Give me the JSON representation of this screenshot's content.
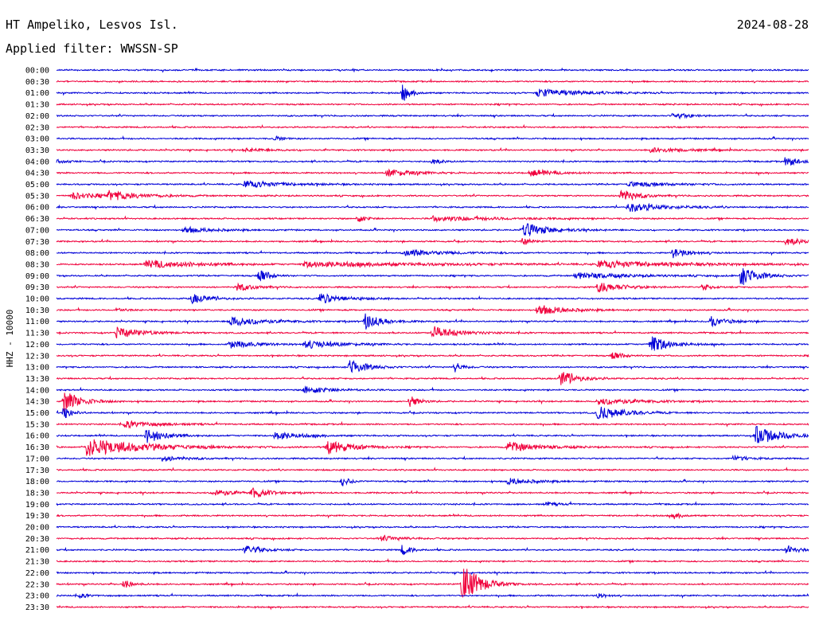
{
  "header": {
    "station": "HT Ampeliko, Lesvos Isl.",
    "date": "2024-08-28",
    "filter": "Applied filter: WWSSN-SP"
  },
  "chart_data": {
    "type": "line",
    "ylabel": "HHZ - 10000",
    "colors": [
      "#0000d8",
      "#f0003c"
    ],
    "rows": [
      {
        "t": "00:00",
        "events": []
      },
      {
        "t": "00:30",
        "events": []
      },
      {
        "t": "01:00",
        "events": [
          {
            "at": 0.46,
            "amp": 10,
            "dur": 0.01
          },
          {
            "at": 0.64,
            "amp": 5,
            "dur": 0.05
          }
        ]
      },
      {
        "t": "01:30",
        "events": []
      },
      {
        "t": "02:00",
        "events": [
          {
            "at": 0.82,
            "amp": 4,
            "dur": 0.02
          }
        ]
      },
      {
        "t": "02:30",
        "events": []
      },
      {
        "t": "03:00",
        "events": [
          {
            "at": 0.29,
            "amp": 3,
            "dur": 0.01
          }
        ]
      },
      {
        "t": "03:30",
        "events": [
          {
            "at": 0.25,
            "amp": 2,
            "dur": 0.03
          },
          {
            "at": 0.79,
            "amp": 3,
            "dur": 0.04
          }
        ]
      },
      {
        "t": "04:00",
        "events": [
          {
            "at": 0.0,
            "amp": 4,
            "dur": 0.01
          },
          {
            "at": 0.5,
            "amp": 4,
            "dur": 0.01
          },
          {
            "at": 0.97,
            "amp": 6,
            "dur": 0.02
          }
        ]
      },
      {
        "t": "04:30",
        "events": [
          {
            "at": 0.44,
            "amp": 5,
            "dur": 0.03
          },
          {
            "at": 0.63,
            "amp": 4,
            "dur": 0.03
          }
        ]
      },
      {
        "t": "05:00",
        "events": [
          {
            "at": 0.25,
            "amp": 4,
            "dur": 0.05
          },
          {
            "at": 0.76,
            "amp": 3,
            "dur": 0.05
          }
        ]
      },
      {
        "t": "05:30",
        "events": [
          {
            "at": 0.02,
            "amp": 4,
            "dur": 0.04
          },
          {
            "at": 0.07,
            "amp": 5,
            "dur": 0.04
          },
          {
            "at": 0.75,
            "amp": 8,
            "dur": 0.02
          }
        ]
      },
      {
        "t": "06:00",
        "events": [
          {
            "at": 0.76,
            "amp": 6,
            "dur": 0.04
          }
        ]
      },
      {
        "t": "06:30",
        "events": [
          {
            "at": 0.4,
            "amp": 5,
            "dur": 0.01
          },
          {
            "at": 0.5,
            "amp": 3,
            "dur": 0.08
          }
        ]
      },
      {
        "t": "07:00",
        "events": [
          {
            "at": 0.62,
            "amp": 9,
            "dur": 0.03
          },
          {
            "at": 0.17,
            "amp": 4,
            "dur": 0.03
          }
        ]
      },
      {
        "t": "07:30",
        "events": [
          {
            "at": 0.62,
            "amp": 5,
            "dur": 0.01
          },
          {
            "at": 0.97,
            "amp": 5,
            "dur": 0.02
          }
        ]
      },
      {
        "t": "08:00",
        "events": [
          {
            "at": 0.46,
            "amp": 4,
            "dur": 0.05
          },
          {
            "at": 0.82,
            "amp": 6,
            "dur": 0.02
          }
        ]
      },
      {
        "t": "08:30",
        "events": [
          {
            "at": 0.12,
            "amp": 5,
            "dur": 0.06
          },
          {
            "at": 0.33,
            "amp": 3,
            "dur": 0.15
          },
          {
            "at": 0.72,
            "amp": 4,
            "dur": 0.1
          }
        ]
      },
      {
        "t": "09:00",
        "events": [
          {
            "at": 0.27,
            "amp": 12,
            "dur": 0.01
          },
          {
            "at": 0.91,
            "amp": 13,
            "dur": 0.02
          },
          {
            "at": 0.69,
            "amp": 4,
            "dur": 0.06
          }
        ]
      },
      {
        "t": "09:30",
        "events": [
          {
            "at": 0.24,
            "amp": 5,
            "dur": 0.02
          },
          {
            "at": 0.72,
            "amp": 7,
            "dur": 0.03
          },
          {
            "at": 0.86,
            "amp": 4,
            "dur": 0.01
          }
        ]
      },
      {
        "t": "10:00",
        "events": [
          {
            "at": 0.18,
            "amp": 6,
            "dur": 0.02
          },
          {
            "at": 0.35,
            "amp": 6,
            "dur": 0.03
          }
        ]
      },
      {
        "t": "10:30",
        "events": [
          {
            "at": 0.64,
            "amp": 7,
            "dur": 0.03
          },
          {
            "at": 0.08,
            "amp": 3,
            "dur": 0.01
          }
        ]
      },
      {
        "t": "11:00",
        "events": [
          {
            "at": 0.41,
            "amp": 10,
            "dur": 0.02
          },
          {
            "at": 0.23,
            "amp": 6,
            "dur": 0.04
          },
          {
            "at": 0.87,
            "amp": 6,
            "dur": 0.02
          }
        ]
      },
      {
        "t": "11:30",
        "events": [
          {
            "at": 0.08,
            "amp": 7,
            "dur": 0.03
          },
          {
            "at": 0.5,
            "amp": 8,
            "dur": 0.03
          }
        ]
      },
      {
        "t": "12:00",
        "events": [
          {
            "at": 0.79,
            "amp": 12,
            "dur": 0.02
          },
          {
            "at": 0.23,
            "amp": 5,
            "dur": 0.03
          },
          {
            "at": 0.33,
            "amp": 5,
            "dur": 0.04
          }
        ]
      },
      {
        "t": "12:30",
        "events": [
          {
            "at": 0.74,
            "amp": 7,
            "dur": 0.01
          }
        ]
      },
      {
        "t": "13:00",
        "events": [
          {
            "at": 0.39,
            "amp": 10,
            "dur": 0.02
          },
          {
            "at": 0.53,
            "amp": 6,
            "dur": 0.01
          }
        ]
      },
      {
        "t": "13:30",
        "events": [
          {
            "at": 0.67,
            "amp": 10,
            "dur": 0.02
          }
        ]
      },
      {
        "t": "14:00",
        "events": [
          {
            "at": 0.33,
            "amp": 5,
            "dur": 0.03
          }
        ]
      },
      {
        "t": "14:30",
        "events": [
          {
            "at": 0.01,
            "amp": 14,
            "dur": 0.02
          },
          {
            "at": 0.47,
            "amp": 8,
            "dur": 0.01
          },
          {
            "at": 0.72,
            "amp": 4,
            "dur": 0.05
          }
        ]
      },
      {
        "t": "15:00",
        "events": [
          {
            "at": 0.01,
            "amp": 8,
            "dur": 0.01
          },
          {
            "at": 0.72,
            "amp": 9,
            "dur": 0.03
          }
        ]
      },
      {
        "t": "15:30",
        "events": [
          {
            "at": 0.09,
            "amp": 4,
            "dur": 0.04
          }
        ]
      },
      {
        "t": "16:00",
        "events": [
          {
            "at": 0.12,
            "amp": 10,
            "dur": 0.02
          },
          {
            "at": 0.93,
            "amp": 12,
            "dur": 0.03
          },
          {
            "at": 0.29,
            "amp": 5,
            "dur": 0.03
          }
        ]
      },
      {
        "t": "16:30",
        "events": [
          {
            "at": 0.04,
            "amp": 11,
            "dur": 0.07
          },
          {
            "at": 0.36,
            "amp": 9,
            "dur": 0.03
          },
          {
            "at": 0.6,
            "amp": 6,
            "dur": 0.04
          }
        ]
      },
      {
        "t": "17:00",
        "events": [
          {
            "at": 0.14,
            "amp": 3,
            "dur": 0.03
          },
          {
            "at": 0.9,
            "amp": 3,
            "dur": 0.02
          }
        ]
      },
      {
        "t": "17:30",
        "events": []
      },
      {
        "t": "18:00",
        "events": [
          {
            "at": 0.38,
            "amp": 6,
            "dur": 0.01
          },
          {
            "at": 0.6,
            "amp": 4,
            "dur": 0.03
          }
        ]
      },
      {
        "t": "18:30",
        "events": [
          {
            "at": 0.21,
            "amp": 5,
            "dur": 0.02
          },
          {
            "at": 0.26,
            "amp": 6,
            "dur": 0.02
          }
        ]
      },
      {
        "t": "19:00",
        "events": [
          {
            "at": 0.65,
            "amp": 2,
            "dur": 0.02
          }
        ]
      },
      {
        "t": "19:30",
        "events": [
          {
            "at": 0.82,
            "amp": 4,
            "dur": 0.01
          }
        ]
      },
      {
        "t": "20:00",
        "events": []
      },
      {
        "t": "20:30",
        "events": [
          {
            "at": 0.43,
            "amp": 3,
            "dur": 0.03
          }
        ]
      },
      {
        "t": "21:00",
        "events": [
          {
            "at": 0.25,
            "amp": 6,
            "dur": 0.02
          },
          {
            "at": 0.46,
            "amp": 7,
            "dur": 0.01
          },
          {
            "at": 0.97,
            "amp": 4,
            "dur": 0.02
          }
        ]
      },
      {
        "t": "21:30",
        "events": []
      },
      {
        "t": "22:00",
        "events": []
      },
      {
        "t": "22:30",
        "events": [
          {
            "at": 0.09,
            "amp": 6,
            "dur": 0.01
          },
          {
            "at": 0.54,
            "amp": 28,
            "dur": 0.02
          }
        ]
      },
      {
        "t": "23:00",
        "events": [
          {
            "at": 0.03,
            "amp": 3,
            "dur": 0.01
          },
          {
            "at": 0.72,
            "amp": 3,
            "dur": 0.01
          }
        ]
      },
      {
        "t": "23:30",
        "events": []
      }
    ]
  }
}
